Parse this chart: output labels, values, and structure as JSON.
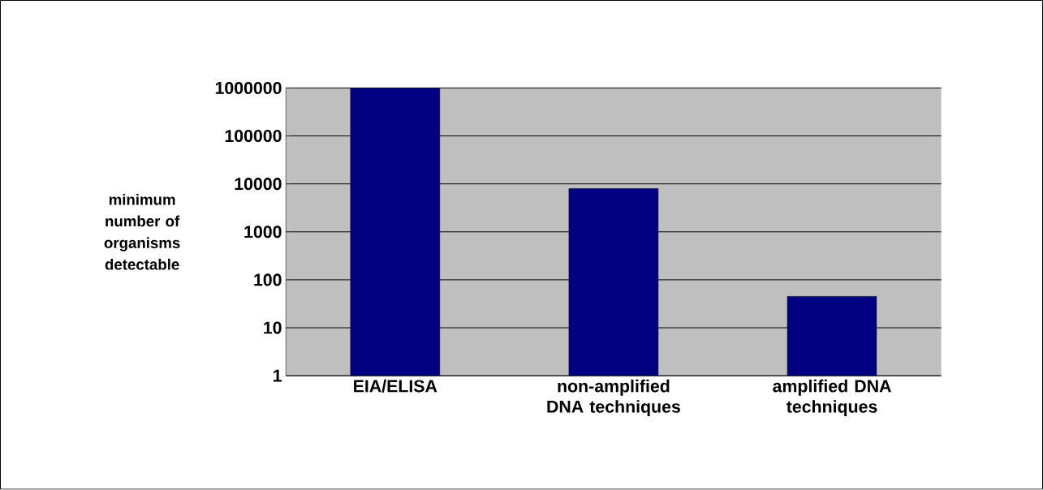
{
  "chart_data": {
    "type": "bar",
    "ylabel": "minimum number of organisms detectable",
    "categories": [
      "EIA/ELISA",
      "non-amplified DNA techniques",
      "amplified DNA techniques"
    ],
    "values": [
      1000000,
      8000,
      45
    ],
    "color": "#000080",
    "ylim": [
      1,
      1000000
    ],
    "yticks": [
      1,
      10,
      100,
      1000,
      10000,
      100000,
      1000000
    ],
    "log": true,
    "grid": "y"
  }
}
